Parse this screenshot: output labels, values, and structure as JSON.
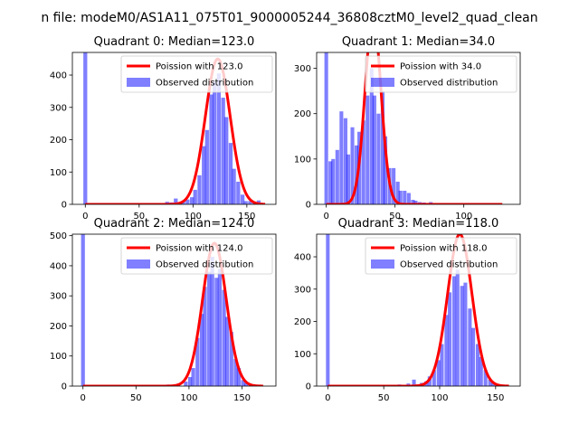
{
  "figure": {
    "suptitle": "n file: modeM0/AS1A11_075T01_9000005244_36808cztM0_level2_quad_clean",
    "colors": {
      "poisson": "#ff0000",
      "observed": "#0000ff"
    }
  },
  "chart_data": [
    {
      "type": "bar",
      "title": "Quadrant 0: Median=123.0",
      "median": 123.0,
      "xlim": [
        -12,
        177
      ],
      "ylim": [
        0,
        470
      ],
      "xticks": [
        0,
        50,
        100,
        150
      ],
      "yticks": [
        0,
        100,
        200,
        300,
        400
      ],
      "legend": {
        "placement": "top-right",
        "entries": [
          "Poission with 123.0",
          "Observed distribution"
        ]
      },
      "bin_width": 3.6,
      "observed": [
        {
          "x": 0,
          "count": 470
        },
        {
          "x": 76,
          "count": 8
        },
        {
          "x": 80,
          "count": 6
        },
        {
          "x": 84,
          "count": 18
        },
        {
          "x": 88,
          "count": 6
        },
        {
          "x": 91,
          "count": 10
        },
        {
          "x": 95,
          "count": 15
        },
        {
          "x": 99,
          "count": 22
        },
        {
          "x": 102,
          "count": 45
        },
        {
          "x": 106,
          "count": 90
        },
        {
          "x": 110,
          "count": 180
        },
        {
          "x": 113,
          "count": 230
        },
        {
          "x": 117,
          "count": 340
        },
        {
          "x": 120,
          "count": 380
        },
        {
          "x": 124,
          "count": 405
        },
        {
          "x": 128,
          "count": 330
        },
        {
          "x": 131,
          "count": 270
        },
        {
          "x": 135,
          "count": 190
        },
        {
          "x": 138,
          "count": 110
        },
        {
          "x": 142,
          "count": 70
        },
        {
          "x": 146,
          "count": 30
        },
        {
          "x": 149,
          "count": 10
        },
        {
          "x": 153,
          "count": 10
        },
        {
          "x": 157,
          "count": 5
        },
        {
          "x": 161,
          "count": 12
        },
        {
          "x": 164,
          "count": 3
        }
      ],
      "poisson": {
        "xmax": 167,
        "peak": 450,
        "sigma": 11.5
      }
    },
    {
      "type": "bar",
      "title": "Quadrant 1: Median=34.0",
      "median": 34.0,
      "xlim": [
        -7,
        141
      ],
      "ylim": [
        0,
        335
      ],
      "xticks": [
        0,
        50,
        100
      ],
      "yticks": [
        0,
        100,
        200,
        300
      ],
      "legend": {
        "placement": "top-right",
        "entries": [
          "Poission with 34.0",
          "Observed distribution"
        ]
      },
      "bin_width": 2.7,
      "observed": [
        {
          "x": 0,
          "count": 335
        },
        {
          "x": 3,
          "count": 95
        },
        {
          "x": 5,
          "count": 100
        },
        {
          "x": 8,
          "count": 120
        },
        {
          "x": 11,
          "count": 205
        },
        {
          "x": 14,
          "count": 190
        },
        {
          "x": 16,
          "count": 110
        },
        {
          "x": 19,
          "count": 170
        },
        {
          "x": 22,
          "count": 130
        },
        {
          "x": 24,
          "count": 160
        },
        {
          "x": 27,
          "count": 185
        },
        {
          "x": 30,
          "count": 240
        },
        {
          "x": 33,
          "count": 300
        },
        {
          "x": 35,
          "count": 240
        },
        {
          "x": 38,
          "count": 200
        },
        {
          "x": 41,
          "count": 250
        },
        {
          "x": 43,
          "count": 150
        },
        {
          "x": 46,
          "count": 80
        },
        {
          "x": 49,
          "count": 80
        },
        {
          "x": 52,
          "count": 50
        },
        {
          "x": 54,
          "count": 30
        },
        {
          "x": 57,
          "count": 30
        },
        {
          "x": 60,
          "count": 25
        },
        {
          "x": 63,
          "count": 10
        },
        {
          "x": 65,
          "count": 8
        },
        {
          "x": 68,
          "count": 5
        },
        {
          "x": 71,
          "count": 4
        },
        {
          "x": 76,
          "count": 5
        },
        {
          "x": 87,
          "count": 3
        }
      ],
      "poisson": {
        "xmax": 128,
        "peak": 415,
        "sigma": 5.8
      }
    },
    {
      "type": "bar",
      "title": "Quadrant 2: Median=124.0",
      "median": 124.0,
      "xlim": [
        -10,
        182
      ],
      "ylim": [
        0,
        505
      ],
      "xticks": [
        0,
        50,
        100,
        150
      ],
      "yticks": [
        0,
        100,
        200,
        300,
        400,
        500
      ],
      "legend": {
        "placement": "top-right",
        "entries": [
          "Poission with 124.0",
          "Observed distribution"
        ]
      },
      "bin_width": 3.6,
      "observed": [
        {
          "x": 0,
          "count": 505
        },
        {
          "x": 72,
          "count": 3
        },
        {
          "x": 80,
          "count": 5
        },
        {
          "x": 90,
          "count": 8
        },
        {
          "x": 97,
          "count": 15
        },
        {
          "x": 101,
          "count": 30
        },
        {
          "x": 104,
          "count": 60
        },
        {
          "x": 108,
          "count": 160
        },
        {
          "x": 112,
          "count": 240
        },
        {
          "x": 115,
          "count": 330
        },
        {
          "x": 119,
          "count": 380
        },
        {
          "x": 122,
          "count": 430
        },
        {
          "x": 126,
          "count": 360
        },
        {
          "x": 129,
          "count": 390
        },
        {
          "x": 133,
          "count": 320
        },
        {
          "x": 136,
          "count": 230
        },
        {
          "x": 140,
          "count": 180
        },
        {
          "x": 144,
          "count": 90
        },
        {
          "x": 147,
          "count": 60
        },
        {
          "x": 151,
          "count": 20
        },
        {
          "x": 154,
          "count": 10
        },
        {
          "x": 158,
          "count": 5
        },
        {
          "x": 162,
          "count": 3
        }
      ],
      "poisson": {
        "xmax": 170,
        "peak": 475,
        "sigma": 11.2
      }
    },
    {
      "type": "bar",
      "title": "Quadrant 3: Median=118.0",
      "median": 118.0,
      "xlim": [
        -10,
        172
      ],
      "ylim": [
        0,
        470
      ],
      "xticks": [
        0,
        50,
        100,
        150
      ],
      "yticks": [
        0,
        100,
        200,
        300,
        400
      ],
      "legend": {
        "placement": "top-right",
        "entries": [
          "Poission with 118.0",
          "Observed distribution"
        ]
      },
      "bin_width": 3.3,
      "observed": [
        {
          "x": 0,
          "count": 470
        },
        {
          "x": 64,
          "count": 5
        },
        {
          "x": 72,
          "count": 8
        },
        {
          "x": 77,
          "count": 20
        },
        {
          "x": 80,
          "count": 5
        },
        {
          "x": 84,
          "count": 10
        },
        {
          "x": 88,
          "count": 15
        },
        {
          "x": 91,
          "count": 30
        },
        {
          "x": 95,
          "count": 50
        },
        {
          "x": 99,
          "count": 80
        },
        {
          "x": 102,
          "count": 130
        },
        {
          "x": 106,
          "count": 220
        },
        {
          "x": 109,
          "count": 290
        },
        {
          "x": 113,
          "count": 340
        },
        {
          "x": 116,
          "count": 360
        },
        {
          "x": 120,
          "count": 310
        },
        {
          "x": 123,
          "count": 320
        },
        {
          "x": 127,
          "count": 240
        },
        {
          "x": 130,
          "count": 180
        },
        {
          "x": 134,
          "count": 130
        },
        {
          "x": 137,
          "count": 90
        },
        {
          "x": 141,
          "count": 50
        },
        {
          "x": 145,
          "count": 20
        },
        {
          "x": 148,
          "count": 10
        },
        {
          "x": 152,
          "count": 5
        },
        {
          "x": 156,
          "count": 3
        }
      ],
      "poisson": {
        "xmax": 162,
        "peak": 470,
        "sigma": 10.9
      }
    }
  ]
}
